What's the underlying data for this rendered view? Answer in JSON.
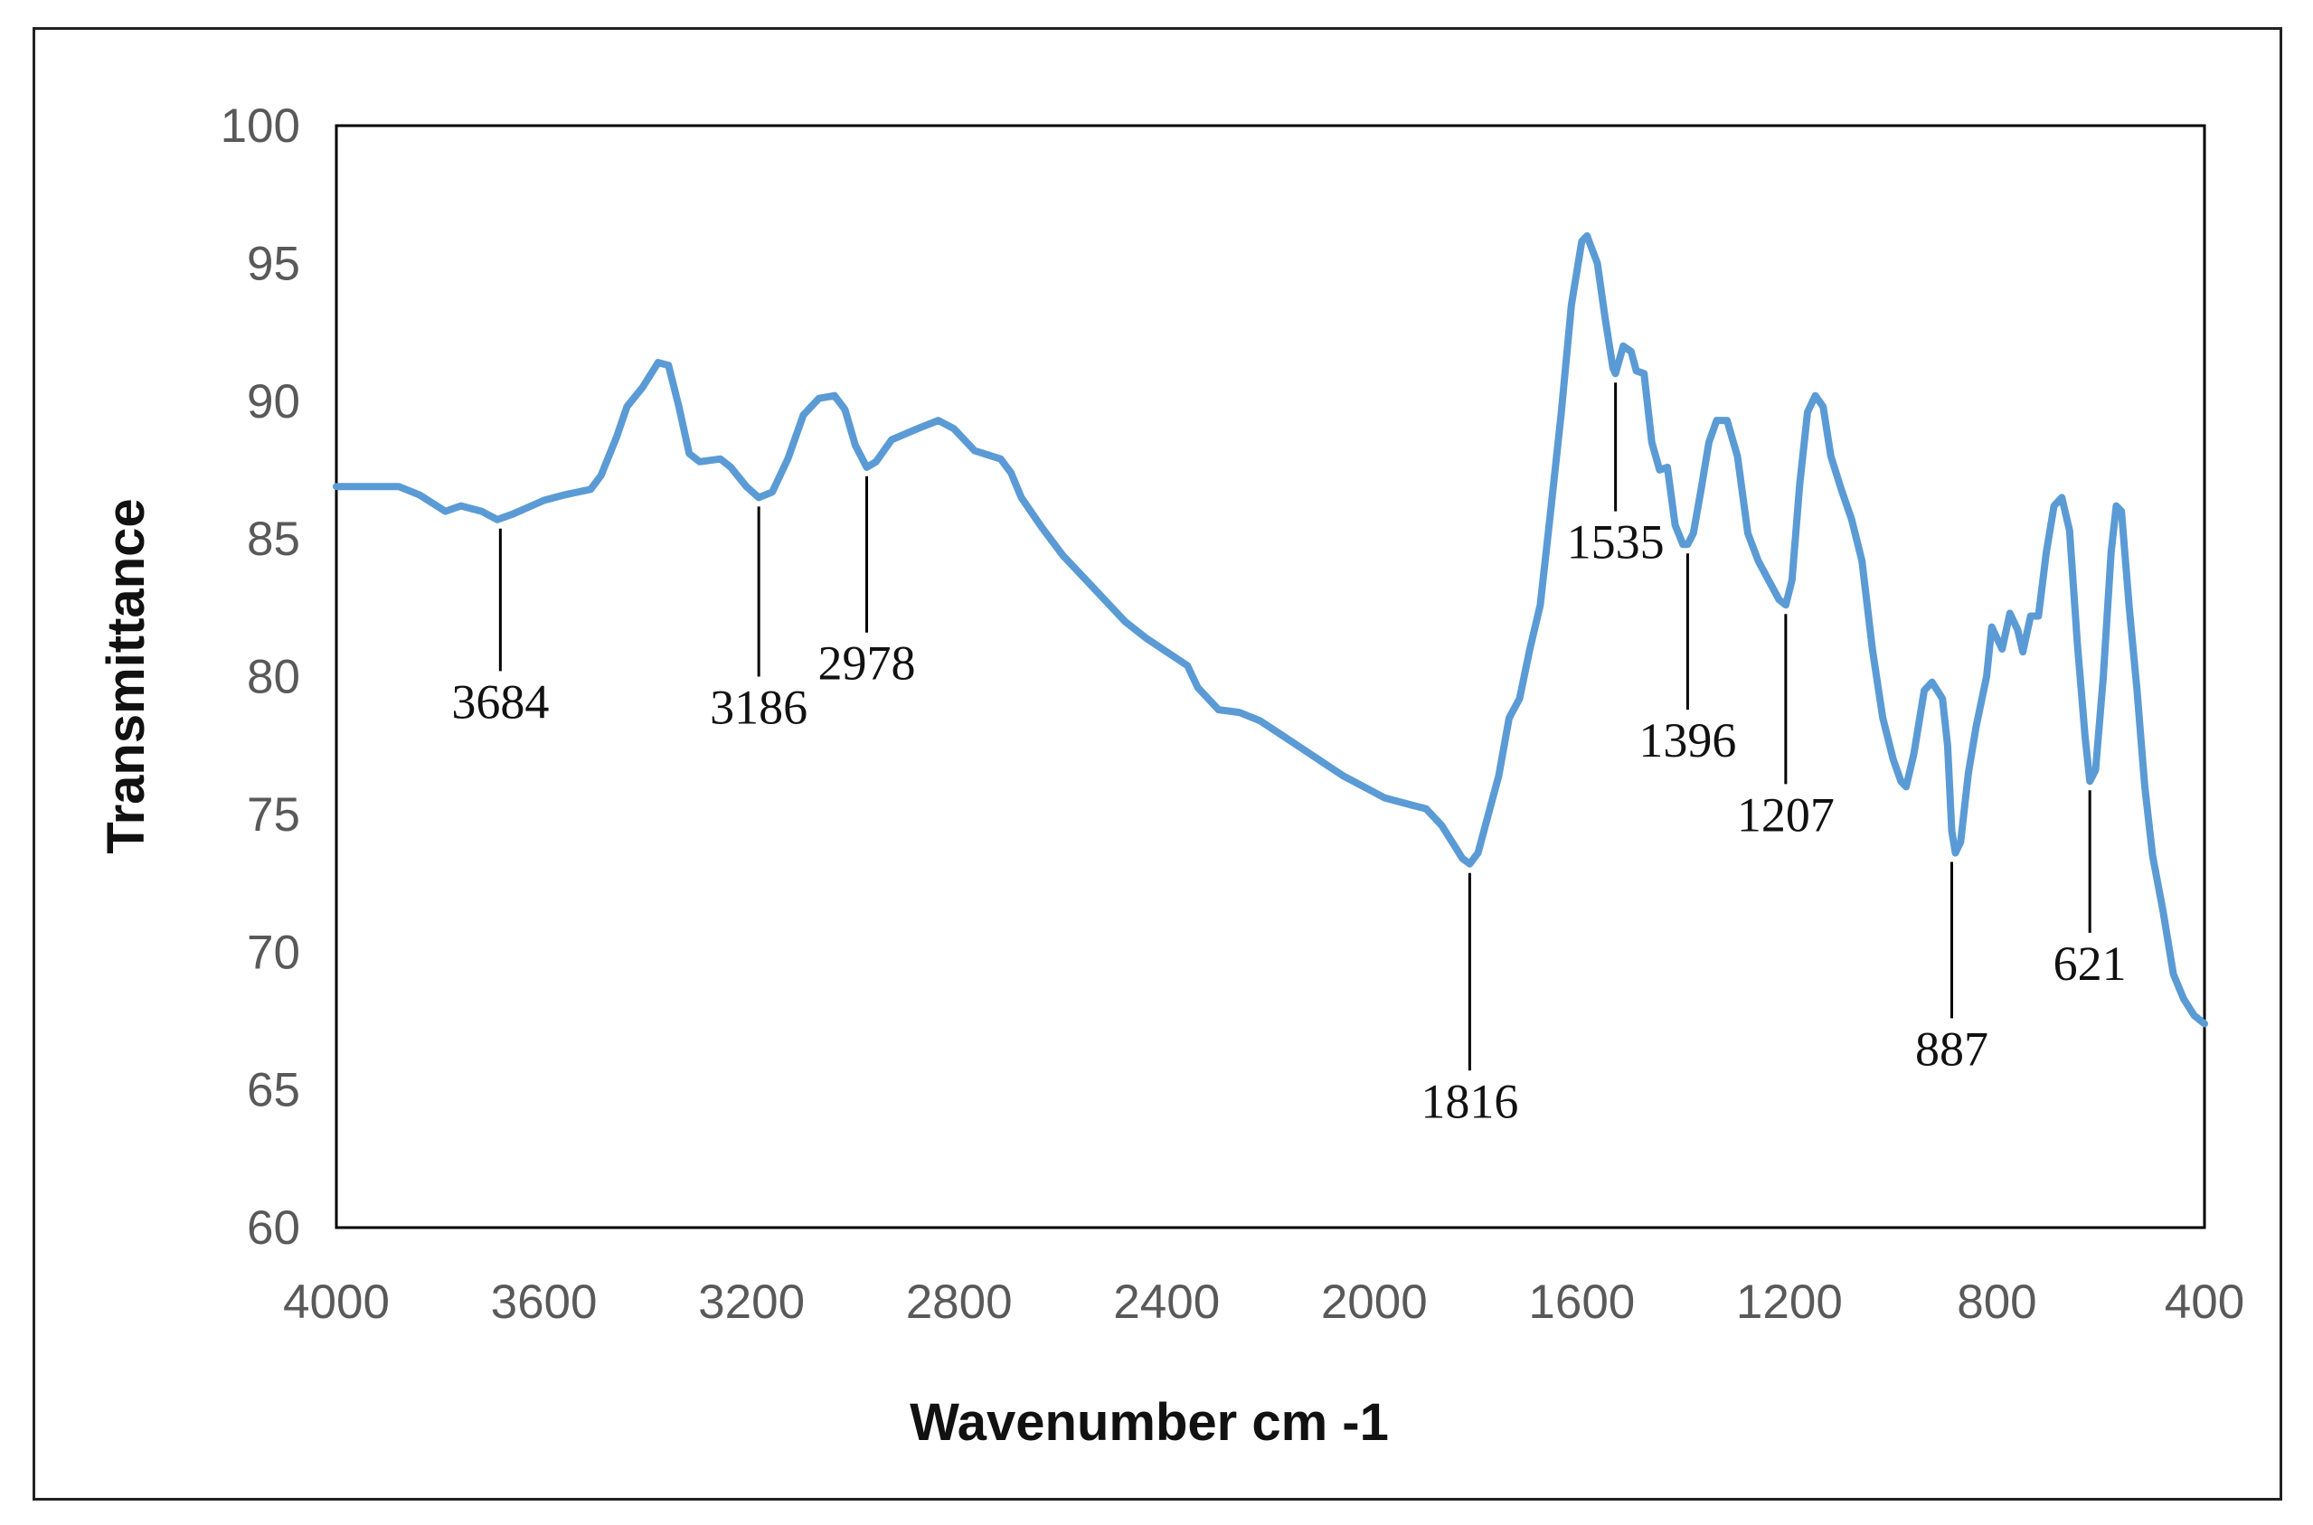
{
  "chart_data": {
    "type": "line",
    "title": "",
    "xlabel": "Wavenumber cm -1",
    "ylabel": "Transmittance",
    "xlim": [
      4000,
      400
    ],
    "ylim": [
      60,
      100
    ],
    "x_reversed": true,
    "grid": false,
    "legend": "none",
    "line_color": "#5B9BD5",
    "x_ticks": [
      4000,
      3600,
      3200,
      2800,
      2400,
      2000,
      1600,
      1200,
      800,
      400
    ],
    "y_ticks": [
      60,
      65,
      70,
      75,
      80,
      85,
      90,
      95,
      100
    ],
    "series": [
      {
        "points": [
          [
            4000,
            86.9
          ],
          [
            3880,
            86.9
          ],
          [
            3840,
            86.6
          ],
          [
            3790,
            86.0
          ],
          [
            3760,
            86.2
          ],
          [
            3720,
            86.0
          ],
          [
            3690,
            85.7
          ],
          [
            3660,
            85.9
          ],
          [
            3600,
            86.4
          ],
          [
            3560,
            86.6
          ],
          [
            3510,
            86.8
          ],
          [
            3490,
            87.3
          ],
          [
            3460,
            88.7
          ],
          [
            3440,
            89.8
          ],
          [
            3410,
            90.5
          ],
          [
            3380,
            91.4
          ],
          [
            3360,
            91.3
          ],
          [
            3340,
            89.8
          ],
          [
            3320,
            88.1
          ],
          [
            3300,
            87.8
          ],
          [
            3260,
            87.9
          ],
          [
            3240,
            87.6
          ],
          [
            3210,
            86.9
          ],
          [
            3186,
            86.5
          ],
          [
            3160,
            86.7
          ],
          [
            3130,
            87.9
          ],
          [
            3100,
            89.5
          ],
          [
            3070,
            90.1
          ],
          [
            3040,
            90.2
          ],
          [
            3020,
            89.7
          ],
          [
            3000,
            88.4
          ],
          [
            2978,
            87.6
          ],
          [
            2960,
            87.8
          ],
          [
            2930,
            88.6
          ],
          [
            2880,
            89.0
          ],
          [
            2840,
            89.3
          ],
          [
            2810,
            89.0
          ],
          [
            2770,
            88.2
          ],
          [
            2720,
            87.9
          ],
          [
            2700,
            87.4
          ],
          [
            2680,
            86.5
          ],
          [
            2640,
            85.4
          ],
          [
            2600,
            84.4
          ],
          [
            2560,
            83.6
          ],
          [
            2520,
            82.8
          ],
          [
            2480,
            82.0
          ],
          [
            2440,
            81.4
          ],
          [
            2400,
            80.9
          ],
          [
            2360,
            80.4
          ],
          [
            2340,
            79.6
          ],
          [
            2300,
            78.8
          ],
          [
            2260,
            78.7
          ],
          [
            2220,
            78.4
          ],
          [
            2180,
            77.9
          ],
          [
            2140,
            77.4
          ],
          [
            2100,
            76.9
          ],
          [
            2060,
            76.4
          ],
          [
            2020,
            76.0
          ],
          [
            1980,
            75.6
          ],
          [
            1940,
            75.4
          ],
          [
            1900,
            75.2
          ],
          [
            1870,
            74.6
          ],
          [
            1850,
            74.0
          ],
          [
            1830,
            73.4
          ],
          [
            1816,
            73.2
          ],
          [
            1800,
            73.6
          ],
          [
            1780,
            75.0
          ],
          [
            1760,
            76.4
          ],
          [
            1740,
            78.5
          ],
          [
            1720,
            79.2
          ],
          [
            1700,
            81.0
          ],
          [
            1680,
            82.6
          ],
          [
            1660,
            86.0
          ],
          [
            1640,
            89.5
          ],
          [
            1620,
            93.5
          ],
          [
            1600,
            95.8
          ],
          [
            1590,
            96.0
          ],
          [
            1570,
            95.0
          ],
          [
            1555,
            93.0
          ],
          [
            1540,
            91.2
          ],
          [
            1535,
            91.0
          ],
          [
            1520,
            92.0
          ],
          [
            1505,
            91.8
          ],
          [
            1495,
            91.1
          ],
          [
            1480,
            91.0
          ],
          [
            1465,
            88.5
          ],
          [
            1450,
            87.5
          ],
          [
            1435,
            87.6
          ],
          [
            1420,
            85.5
          ],
          [
            1405,
            84.8
          ],
          [
            1396,
            84.8
          ],
          [
            1385,
            85.2
          ],
          [
            1370,
            86.8
          ],
          [
            1355,
            88.5
          ],
          [
            1340,
            89.3
          ],
          [
            1320,
            89.3
          ],
          [
            1300,
            88.0
          ],
          [
            1280,
            85.2
          ],
          [
            1260,
            84.2
          ],
          [
            1240,
            83.5
          ],
          [
            1220,
            82.8
          ],
          [
            1207,
            82.6
          ],
          [
            1195,
            83.5
          ],
          [
            1180,
            87.0
          ],
          [
            1165,
            89.6
          ],
          [
            1150,
            90.2
          ],
          [
            1135,
            89.8
          ],
          [
            1120,
            88.0
          ],
          [
            1100,
            86.8
          ],
          [
            1080,
            85.7
          ],
          [
            1060,
            84.2
          ],
          [
            1040,
            81.0
          ],
          [
            1020,
            78.5
          ],
          [
            1000,
            77.0
          ],
          [
            985,
            76.2
          ],
          [
            975,
            76.0
          ],
          [
            960,
            77.2
          ],
          [
            940,
            79.5
          ],
          [
            925,
            79.8
          ],
          [
            905,
            79.2
          ],
          [
            895,
            77.5
          ],
          [
            887,
            74.4
          ],
          [
            880,
            73.6
          ],
          [
            870,
            74.0
          ],
          [
            855,
            76.5
          ],
          [
            840,
            78.2
          ],
          [
            820,
            80.0
          ],
          [
            810,
            81.8
          ],
          [
            800,
            81.4
          ],
          [
            790,
            81.0
          ],
          [
            775,
            82.3
          ],
          [
            760,
            81.7
          ],
          [
            750,
            80.9
          ],
          [
            735,
            82.2
          ],
          [
            720,
            82.2
          ],
          [
            705,
            84.5
          ],
          [
            690,
            86.2
          ],
          [
            675,
            86.5
          ],
          [
            660,
            85.3
          ],
          [
            645,
            81.2
          ],
          [
            630,
            77.8
          ],
          [
            621,
            76.2
          ],
          [
            610,
            76.6
          ],
          [
            595,
            80.0
          ],
          [
            580,
            84.5
          ],
          [
            570,
            86.2
          ],
          [
            560,
            86.0
          ],
          [
            545,
            82.5
          ],
          [
            530,
            79.5
          ],
          [
            515,
            76.0
          ],
          [
            500,
            73.5
          ],
          [
            480,
            71.5
          ],
          [
            460,
            69.2
          ],
          [
            440,
            68.3
          ],
          [
            420,
            67.7
          ],
          [
            400,
            67.4
          ]
        ]
      }
    ],
    "annotations": [
      {
        "label": "3684",
        "x": 3684,
        "y": 85.7,
        "dir": "below",
        "len": 5.5
      },
      {
        "label": "3186",
        "x": 3186,
        "y": 86.5,
        "dir": "below",
        "len": 6.5
      },
      {
        "label": "2978",
        "x": 2978,
        "y": 87.6,
        "dir": "below",
        "len": 6.0
      },
      {
        "label": "1816",
        "x": 1816,
        "y": 73.2,
        "dir": "below",
        "len": 7.5
      },
      {
        "label": "1535",
        "x": 1535,
        "y": 91.0,
        "dir": "below",
        "len": 5.0
      },
      {
        "label": "1396",
        "x": 1396,
        "y": 84.8,
        "dir": "below",
        "len": 6.0
      },
      {
        "label": "1207",
        "x": 1207,
        "y": 82.6,
        "dir": "below",
        "len": 6.5
      },
      {
        "label": "887",
        "x": 887,
        "y": 73.6,
        "dir": "below",
        "len": 6.0
      },
      {
        "label": "621",
        "x": 621,
        "y": 76.2,
        "dir": "below",
        "len": 5.5
      }
    ]
  }
}
